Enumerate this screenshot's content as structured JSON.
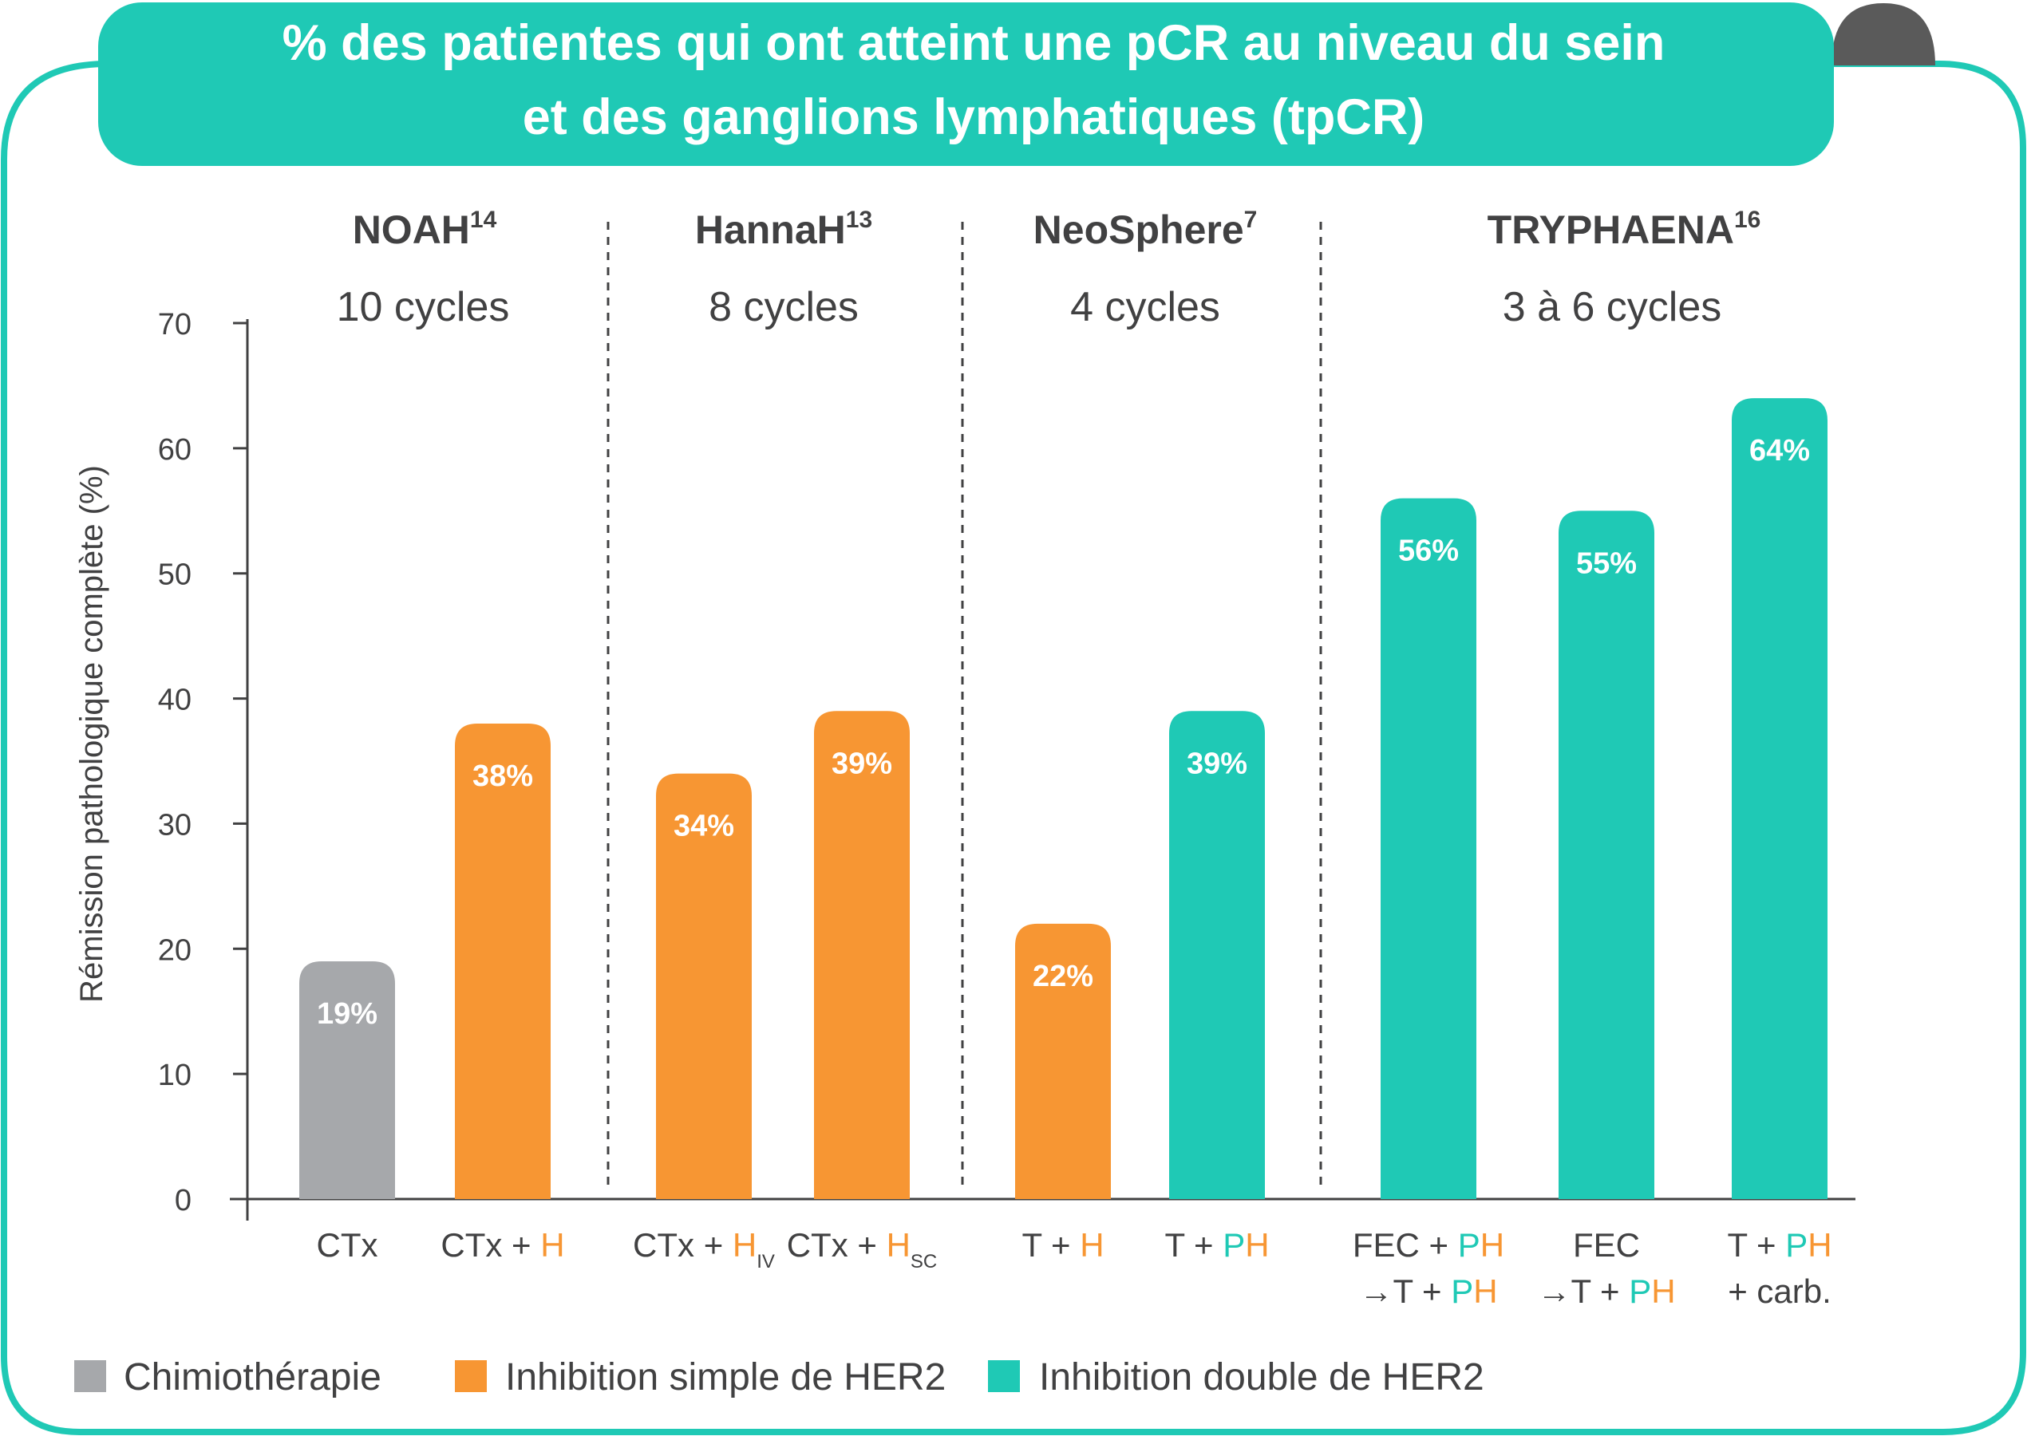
{
  "title": {
    "line1": "% des patientes qui ont atteint une pCR au niveau du sein",
    "line2": "et des ganglions lymphatiques (tpCR)"
  },
  "colors": {
    "teal": "#1fc9b5",
    "orange": "#f79633",
    "gray": "#a6a8ab",
    "text": "#414142",
    "corner": "#5a5a5a"
  },
  "studies": [
    {
      "name": "NOAH",
      "sup": "14",
      "cycles": "10 cycles"
    },
    {
      "name": "HannaH",
      "sup": "13",
      "cycles": "8 cycles"
    },
    {
      "name": "NeoSphere",
      "sup": "7",
      "cycles": "4 cycles"
    },
    {
      "name": "TRYPHAENA",
      "sup": "16",
      "cycles": "3 à 6 cycles"
    }
  ],
  "legend": [
    {
      "label": "Chimiothérapie",
      "color": "#a6a8ab"
    },
    {
      "label": "Inhibition simple de HER2",
      "color": "#f79633"
    },
    {
      "label": "Inhibition double de HER2",
      "color": "#1fc9b5"
    }
  ],
  "chart_data": {
    "type": "bar",
    "ylabel": "Rémission pathologique complète (%)",
    "ylim": [
      0,
      70
    ],
    "yticks": [
      0,
      10,
      20,
      30,
      40,
      50,
      60,
      70
    ],
    "grid": false,
    "legend_position": "bottom",
    "bars": [
      {
        "study": "NOAH",
        "value": 19,
        "label": "19%",
        "group": "Chimiothérapie",
        "category": [
          [
            {
              "t": "CTx"
            }
          ]
        ]
      },
      {
        "study": "NOAH",
        "value": 38,
        "label": "38%",
        "group": "Inhibition simple de HER2",
        "category": [
          [
            {
              "t": "CTx + "
            },
            {
              "t": "H",
              "c": "orange"
            }
          ]
        ]
      },
      {
        "study": "HannaH",
        "value": 34,
        "label": "34%",
        "group": "Inhibition simple de HER2",
        "category": [
          [
            {
              "t": "CTx + "
            },
            {
              "t": "H",
              "c": "orange"
            },
            {
              "t": "IV",
              "sub": true
            }
          ]
        ]
      },
      {
        "study": "HannaH",
        "value": 39,
        "label": "39%",
        "group": "Inhibition simple de HER2",
        "category": [
          [
            {
              "t": "CTx + "
            },
            {
              "t": "H",
              "c": "orange"
            },
            {
              "t": "SC",
              "sub": true
            }
          ]
        ]
      },
      {
        "study": "NeoSphere",
        "value": 22,
        "label": "22%",
        "group": "Inhibition simple de HER2",
        "category": [
          [
            {
              "t": "T + "
            },
            {
              "t": "H",
              "c": "orange"
            }
          ]
        ]
      },
      {
        "study": "NeoSphere",
        "value": 39,
        "label": "39%",
        "group": "Inhibition double de HER2",
        "category": [
          [
            {
              "t": "T + "
            },
            {
              "t": "P",
              "c": "teal"
            },
            {
              "t": "H",
              "c": "orange"
            }
          ]
        ]
      },
      {
        "study": "TRYPHAENA",
        "value": 56,
        "label": "56%",
        "group": "Inhibition double de HER2",
        "category": [
          [
            {
              "t": "FEC + "
            },
            {
              "t": "P",
              "c": "teal"
            },
            {
              "t": "H",
              "c": "orange"
            }
          ],
          [
            {
              "t": "→T + "
            },
            {
              "t": "P",
              "c": "teal"
            },
            {
              "t": "H",
              "c": "orange"
            }
          ]
        ]
      },
      {
        "study": "TRYPHAENA",
        "value": 55,
        "label": "55%",
        "group": "Inhibition double de HER2",
        "category": [
          [
            {
              "t": "FEC"
            }
          ],
          [
            {
              "t": "→T + "
            },
            {
              "t": "P",
              "c": "teal"
            },
            {
              "t": "H",
              "c": "orange"
            }
          ]
        ]
      },
      {
        "study": "TRYPHAENA",
        "value": 64,
        "label": "64%",
        "group": "Inhibition double de HER2",
        "category": [
          [
            {
              "t": "T + "
            },
            {
              "t": "P",
              "c": "teal"
            },
            {
              "t": "H",
              "c": "orange"
            }
          ],
          [
            {
              "t": "+ carb."
            }
          ]
        ]
      }
    ]
  }
}
